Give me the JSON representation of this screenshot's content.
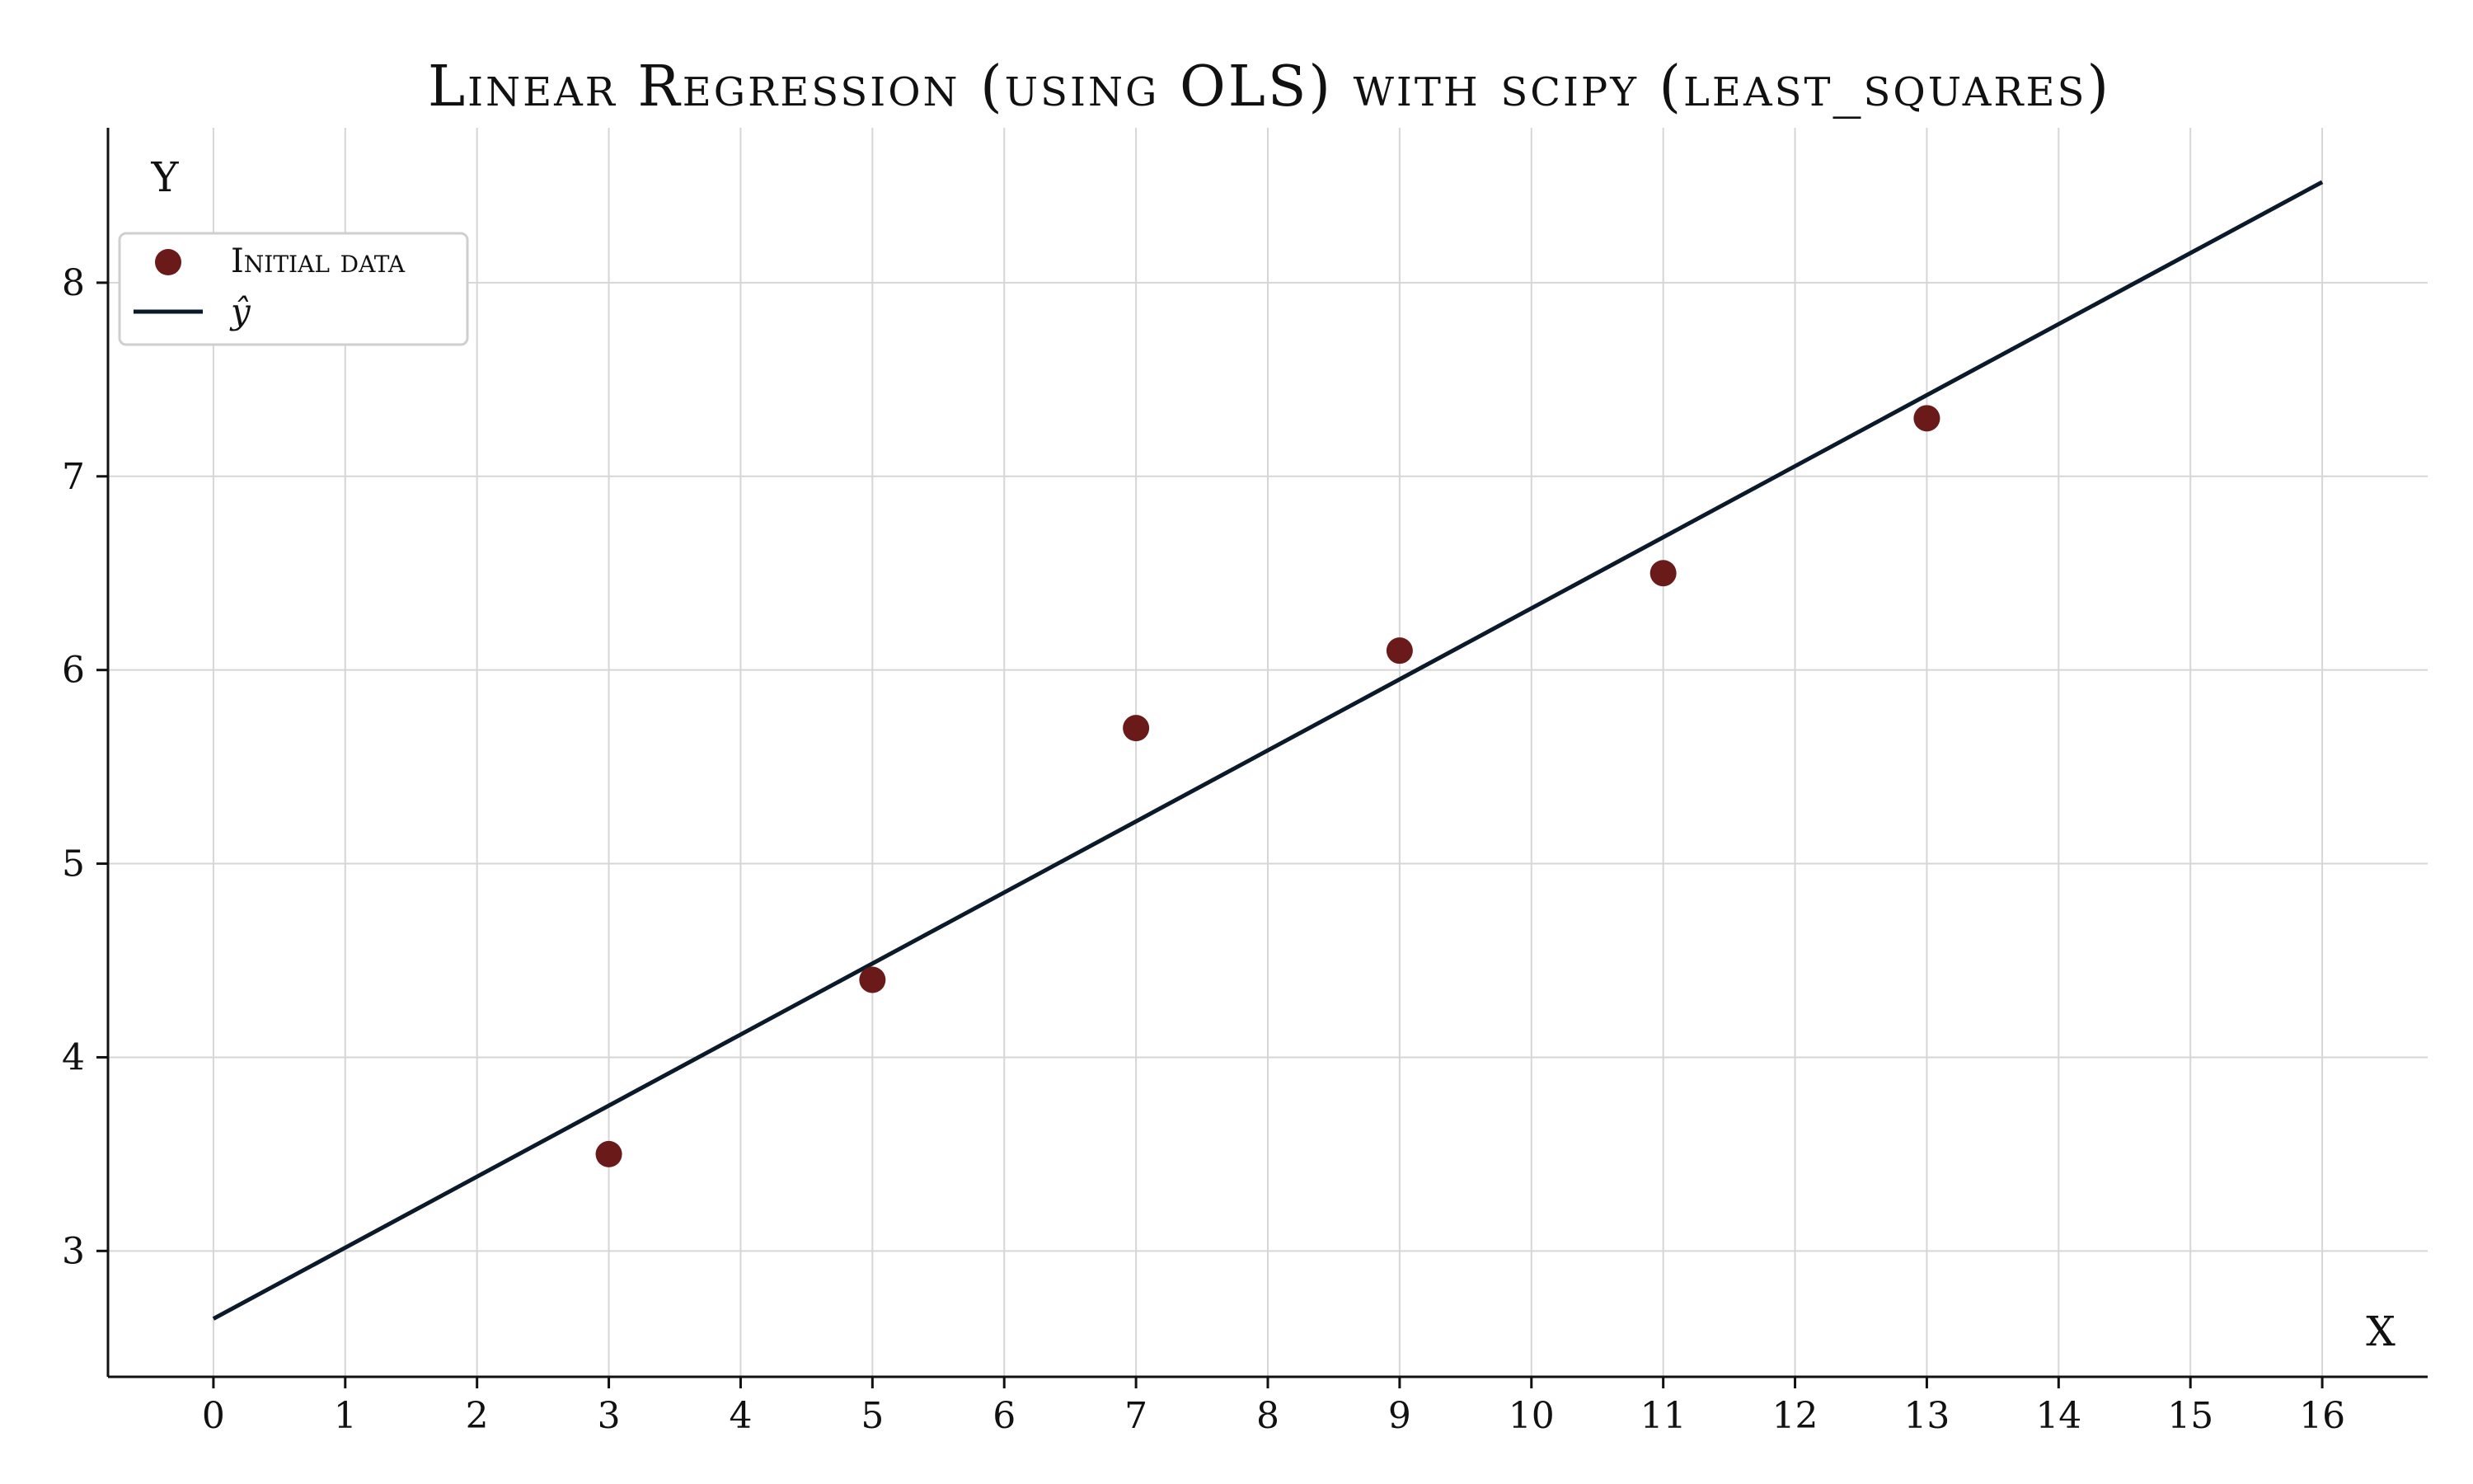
{
  "chart_data": {
    "type": "scatter",
    "title": "Linear Regression (using OLS) with scipy (least_squares)",
    "xlabel": "X",
    "ylabel": "Y",
    "xlim": [
      -0.8,
      16.8
    ],
    "ylim": [
      2.35,
      8.8
    ],
    "xticks": [
      0,
      1,
      2,
      3,
      4,
      5,
      6,
      7,
      8,
      9,
      10,
      11,
      12,
      13,
      14,
      15,
      16
    ],
    "yticks": [
      3,
      4,
      5,
      6,
      7,
      8
    ],
    "grid": true,
    "legend_position": "top-left",
    "series": [
      {
        "name": "Initial data",
        "kind": "scatter",
        "color": "#6b1a1a",
        "x": [
          3,
          5,
          7,
          9,
          11,
          13
        ],
        "y": [
          3.5,
          4.4,
          5.7,
          6.1,
          6.5,
          7.3
        ]
      },
      {
        "name": "ŷ",
        "kind": "line",
        "color": "#0b1a2a",
        "x": [
          0,
          16
        ],
        "y": [
          2.65,
          8.52
        ]
      }
    ]
  }
}
